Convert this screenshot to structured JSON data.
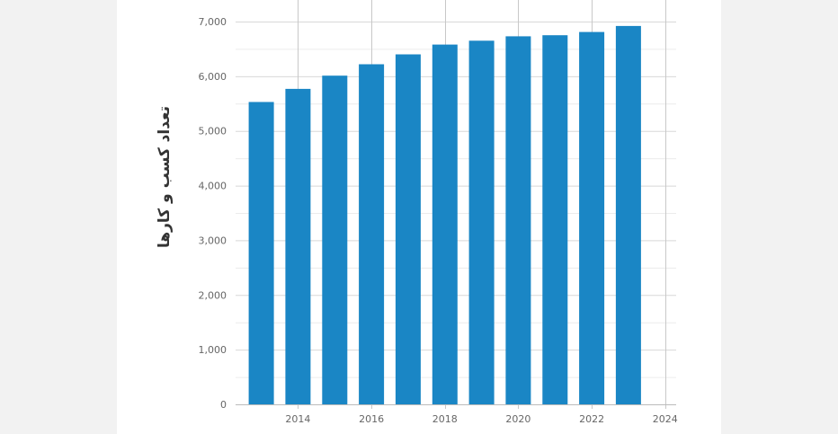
{
  "chart_data": {
    "type": "bar",
    "x": [
      2013,
      2014,
      2015,
      2016,
      2017,
      2018,
      2019,
      2020,
      2021,
      2022,
      2023
    ],
    "values": [
      5530,
      5770,
      6010,
      6220,
      6400,
      6580,
      6650,
      6730,
      6750,
      6810,
      6920
    ],
    "xticks": [
      "2014",
      "2016",
      "2018",
      "2020",
      "2022",
      "2024"
    ],
    "yticks": [
      "0",
      "1,000",
      "2,000",
      "3,000",
      "4,000",
      "5,000",
      "6,000",
      "7,000"
    ],
    "xlim": [
      2012.3,
      2024.3
    ],
    "ylim": [
      0,
      7000
    ],
    "title": "",
    "xlabel": "",
    "ylabel": "تعداد کسب و کارها",
    "grid": true,
    "bar_color": "#1a86c5",
    "grid_color": "#dddddd"
  }
}
